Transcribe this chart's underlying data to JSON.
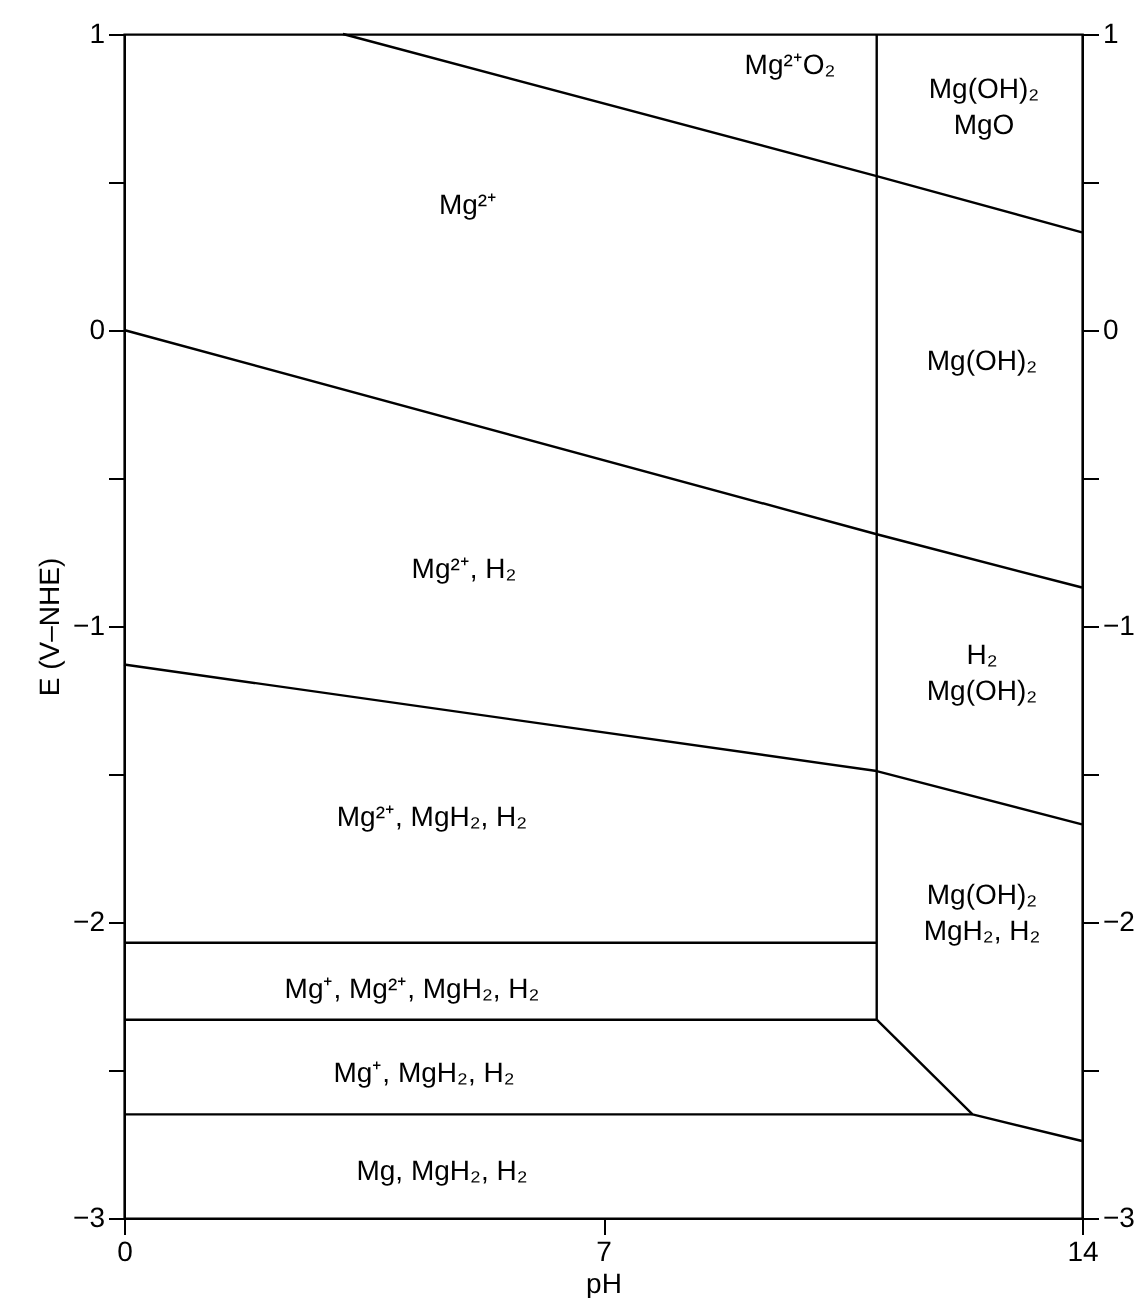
{
  "chart_data": {
    "type": "line",
    "xlabel": "pH",
    "ylabel": "E (V–NHE)",
    "xlim": [
      0,
      14
    ],
    "xticks": [
      0,
      7,
      14
    ],
    "ylim": [
      -3,
      1
    ],
    "yticks": [
      -3,
      {
        "value": -2.5,
        "label": null
      },
      -2,
      {
        "value": -1.5,
        "label": null
      },
      -1,
      {
        "value": -0.5,
        "label": null
      },
      0,
      {
        "value": 0.5,
        "label": null
      },
      1
    ],
    "y2lim": [
      -3,
      1
    ],
    "y2ticks": [
      -3,
      {
        "value": -2.5,
        "label": null
      },
      -2,
      {
        "value": -1.5,
        "label": null
      },
      -1,
      {
        "value": -0.5,
        "label": null
      },
      0,
      {
        "value": 0.5,
        "label": null
      },
      1
    ],
    "grid": false,
    "marker": "none",
    "line_style": "solid",
    "series": [
      {
        "color": "#000000",
        "x": [
          3.2,
          11.0,
          14
        ],
        "values": [
          1,
          0.52,
          0.33
        ]
      },
      {
        "color": "#000000",
        "x": [
          0,
          11.0,
          14
        ],
        "values": [
          0,
          -0.69,
          -0.87
        ]
      },
      {
        "color": "#000000",
        "x": [
          0,
          11.0,
          14
        ],
        "values": [
          -1.13,
          -1.49,
          -1.67
        ]
      },
      {
        "color": "#000000",
        "x": [
          11.0,
          11.0
        ],
        "values": [
          1,
          -2.33
        ]
      },
      {
        "color": "#000000",
        "x": [
          0,
          11.0
        ],
        "values": [
          -2.07,
          -2.07
        ]
      },
      {
        "color": "#000000",
        "x": [
          0,
          11.0,
          12.4,
          14
        ],
        "values": [
          -2.33,
          -2.33,
          -2.65,
          -2.74
        ]
      },
      {
        "color": "#000000",
        "x": [
          0,
          12.4
        ],
        "values": [
          -2.65,
          -2.65
        ]
      }
    ],
    "annotations": [
      "Mg²⁺O₂",
      "Mg(OH)₂\nMgO",
      "Mg²⁺",
      "Mg(OH)₂",
      "Mg²⁺, H₂",
      "H₂\nMg(OH)₂",
      "Mg²⁺, MgH₂, H₂",
      "Mg(OH)₂\nMgH₂, H₂",
      "Mg⁺, Mg²⁺, MgH₂, H₂",
      "Mg⁺, MgH₂, H₂",
      "Mg, MgH₂, H₂"
    ]
  }
}
